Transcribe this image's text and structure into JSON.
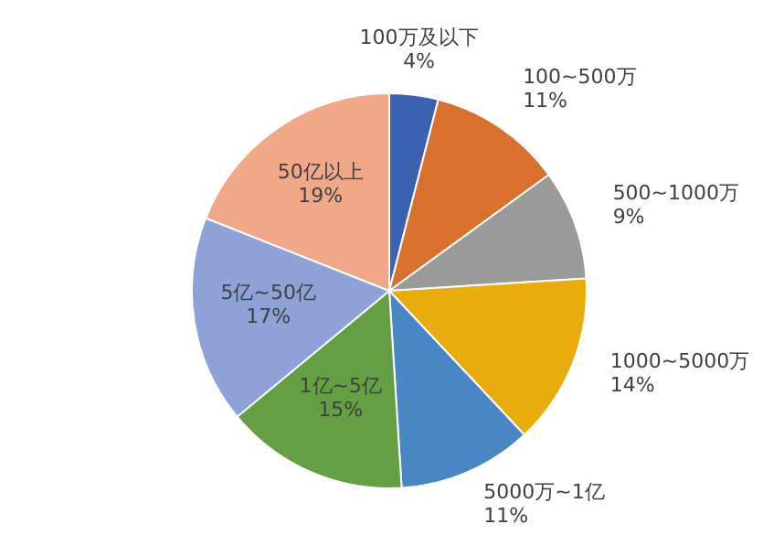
{
  "chart_data": {
    "type": "pie",
    "categories": [
      "100万及以下",
      "100~500万",
      "500~1000万",
      "1000~5000万",
      "5000万~1亿",
      "1亿~5亿",
      "5亿~50亿",
      "50亿以上"
    ],
    "values": [
      4,
      11,
      9,
      14,
      11,
      15,
      17,
      19
    ],
    "value_labels": [
      "4%",
      "11%",
      "9%",
      "14%",
      "11%",
      "15%",
      "17%",
      "19%"
    ],
    "colors": [
      "#3a62b0",
      "#d9702e",
      "#9a9a9a",
      "#e8ad0c",
      "#4a85c4",
      "#64a043",
      "#8ea2d8",
      "#f0a888"
    ],
    "legend": false
  }
}
